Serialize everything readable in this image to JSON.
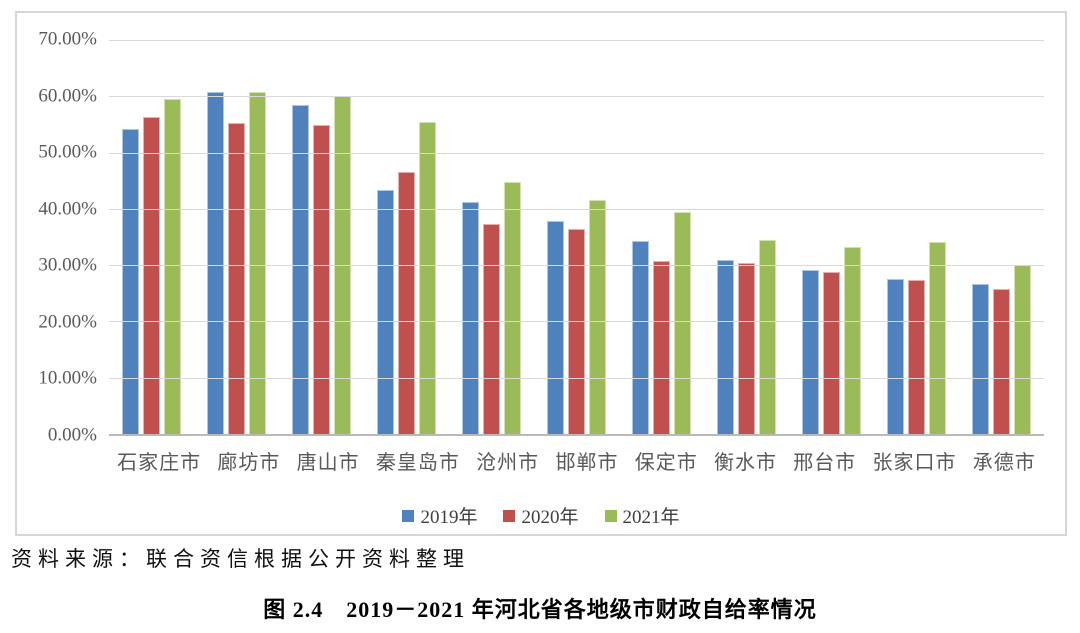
{
  "chart_data": {
    "type": "bar",
    "title": "",
    "categories": [
      "石家庄市",
      "廊坊市",
      "唐山市",
      "秦皇岛市",
      "沧州市",
      "邯郸市",
      "保定市",
      "衡水市",
      "邢台市",
      "张家口市",
      "承德市"
    ],
    "series": [
      {
        "name": "2019年",
        "color": "#4F81BD",
        "values": [
          54.1,
          60.8,
          58.4,
          43.3,
          41.2,
          37.8,
          34.3,
          31.0,
          29.1,
          27.6,
          26.6
        ]
      },
      {
        "name": "2020年",
        "color": "#C0504D",
        "values": [
          56.4,
          55.3,
          54.9,
          46.6,
          37.4,
          36.4,
          30.8,
          30.3,
          28.8,
          27.4,
          25.8
        ]
      },
      {
        "name": "2021年",
        "color": "#9BBB59",
        "values": [
          59.6,
          60.8,
          60.1,
          55.5,
          44.8,
          41.5,
          39.4,
          34.5,
          33.3,
          34.2,
          30.0
        ]
      }
    ],
    "xlabel": "",
    "ylabel": "",
    "ylim": [
      0,
      70
    ],
    "y_ticks": [
      "70.00%",
      "60.00%",
      "50.00%",
      "40.00%",
      "30.00%",
      "20.00%",
      "10.00%",
      "0.00%"
    ],
    "grid": true,
    "legend_position": "bottom",
    "colors": {
      "gridline": "#D9D9D9",
      "axis_text": "#595959",
      "baseline": "#B9B9B9",
      "frame_border": "#D6D6D6"
    }
  },
  "source_note": "资料来源：联合资信根据公开资料整理",
  "caption": "图 2.4　2019－2021 年河北省各地级市财政自给率情况"
}
